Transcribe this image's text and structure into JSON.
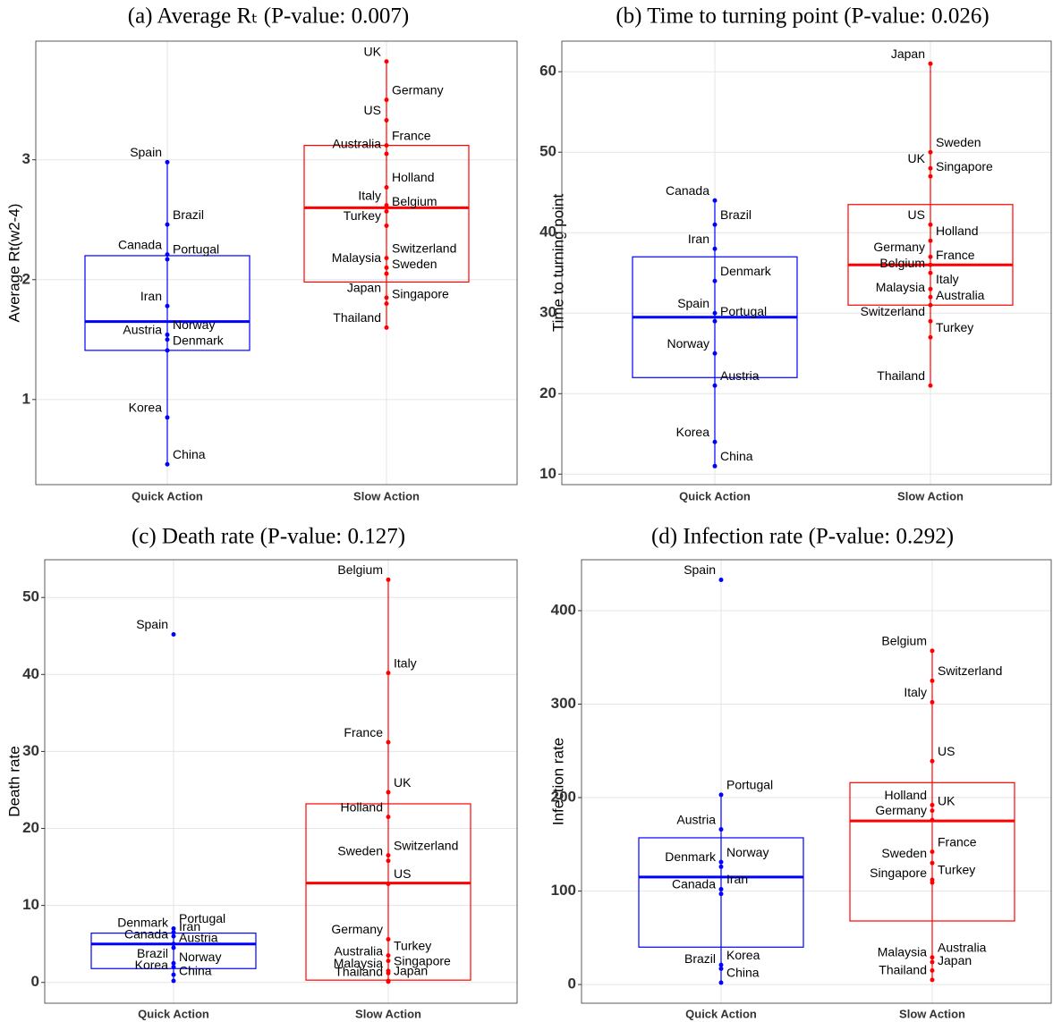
{
  "chart_data": [
    {
      "type": "box",
      "title": "(a) Average Rₜ (P-value: 0.007)",
      "ylabel": "Average Rt(w2-4)",
      "categories": [
        "Quick Action",
        "Slow Action"
      ],
      "ylim": [
        0.29,
        3.99
      ],
      "yticks": [
        1,
        2,
        3
      ],
      "grid": true,
      "groups": [
        {
          "color": "#0000ff",
          "q1": 1.41,
          "median": 1.65,
          "q3": 2.2,
          "whisker_low": 0.46,
          "whisker_high": 2.98,
          "points": [
            {
              "label": "Spain",
              "value": 2.98
            },
            {
              "label": "Brazil",
              "value": 2.46
            },
            {
              "label": "Canada",
              "value": 2.21
            },
            {
              "label": "Portugal",
              "value": 2.17
            },
            {
              "label": "Iran",
              "value": 1.78
            },
            {
              "label": "Norway",
              "value": 1.54
            },
            {
              "label": "Austria",
              "value": 1.5
            },
            {
              "label": "Denmark",
              "value": 1.41
            },
            {
              "label": "Korea",
              "value": 0.85
            },
            {
              "label": "China",
              "value": 0.46
            }
          ]
        },
        {
          "color": "#ff0000",
          "q1": 1.98,
          "median": 2.6,
          "q3": 3.12,
          "whisker_low": 1.6,
          "whisker_high": 3.82,
          "points": [
            {
              "label": "UK",
              "value": 3.82
            },
            {
              "label": "Germany",
              "value": 3.5
            },
            {
              "label": "US",
              "value": 3.33
            },
            {
              "label": "France",
              "value": 3.12
            },
            {
              "label": "Australia",
              "value": 3.05
            },
            {
              "label": "Holland",
              "value": 2.77
            },
            {
              "label": "Italy",
              "value": 2.62
            },
            {
              "label": "Belgium",
              "value": 2.57
            },
            {
              "label": "Turkey",
              "value": 2.45
            },
            {
              "label": "Switzerland",
              "value": 2.18
            },
            {
              "label": "Malaysia",
              "value": 2.1
            },
            {
              "label": "Sweden",
              "value": 2.05
            },
            {
              "label": "Japan",
              "value": 1.85
            },
            {
              "label": "Singapore",
              "value": 1.8
            },
            {
              "label": "Thailand",
              "value": 1.6
            }
          ]
        }
      ]
    },
    {
      "type": "box",
      "title": "(b) Time to turning point (P-value: 0.026)",
      "ylabel": "Time to turning point",
      "categories": [
        "Quick Action",
        "Slow Action"
      ],
      "ylim": [
        8.7,
        63.8
      ],
      "yticks": [
        10,
        20,
        30,
        40,
        50,
        60
      ],
      "grid": true,
      "groups": [
        {
          "color": "#0000ff",
          "q1": 22,
          "median": 29.5,
          "q3": 37,
          "whisker_low": 11,
          "whisker_high": 44,
          "points": [
            {
              "label": "Canada",
              "value": 44
            },
            {
              "label": "Brazil",
              "value": 41
            },
            {
              "label": "Iran",
              "value": 38
            },
            {
              "label": "Denmark",
              "value": 34
            },
            {
              "label": "Spain",
              "value": 30
            },
            {
              "label": "Portugal",
              "value": 29
            },
            {
              "label": "Norway",
              "value": 25
            },
            {
              "label": "Austria",
              "value": 21
            },
            {
              "label": "Korea",
              "value": 14
            },
            {
              "label": "China",
              "value": 11
            }
          ]
        },
        {
          "color": "#ff0000",
          "q1": 31,
          "median": 36,
          "q3": 43.5,
          "whisker_low": 21,
          "whisker_high": 61,
          "points": [
            {
              "label": "Japan",
              "value": 61
            },
            {
              "label": "Sweden",
              "value": 50
            },
            {
              "label": "UK",
              "value": 48
            },
            {
              "label": "Singapore",
              "value": 47
            },
            {
              "label": "US",
              "value": 41
            },
            {
              "label": "Holland",
              "value": 39
            },
            {
              "label": "Germany",
              "value": 37
            },
            {
              "label": "France",
              "value": 36
            },
            {
              "label": "Belgium",
              "value": 35
            },
            {
              "label": "Italy",
              "value": 33
            },
            {
              "label": "Malaysia",
              "value": 32
            },
            {
              "label": "Australia",
              "value": 31
            },
            {
              "label": "Switzerland",
              "value": 29
            },
            {
              "label": "Turkey",
              "value": 27
            },
            {
              "label": "Thailand",
              "value": 21
            }
          ]
        }
      ]
    },
    {
      "type": "box",
      "title": "(c) Death rate (P-value: 0.127)",
      "ylabel": "Death rate",
      "categories": [
        "Quick Action",
        "Slow Action"
      ],
      "ylim": [
        -2.7,
        54.9
      ],
      "yticks": [
        0,
        10,
        20,
        30,
        40,
        50
      ],
      "grid": true,
      "groups": [
        {
          "color": "#0000ff",
          "q1": 1.8,
          "median": 5,
          "q3": 6.4,
          "whisker_low": 0.2,
          "whisker_high": 7,
          "points": [
            {
              "label": "Spain",
              "value": 45.2
            },
            {
              "label": "Portugal",
              "value": 7
            },
            {
              "label": "Denmark",
              "value": 6.5
            },
            {
              "label": "Iran",
              "value": 6
            },
            {
              "label": "Canada",
              "value": 5
            },
            {
              "label": "Austria",
              "value": 4.5
            },
            {
              "label": "Brazil",
              "value": 2.5
            },
            {
              "label": "Norway",
              "value": 2
            },
            {
              "label": "Korea",
              "value": 1
            },
            {
              "label": "China",
              "value": 0.2
            }
          ]
        },
        {
          "color": "#ff0000",
          "q1": 0.3,
          "median": 12.9,
          "q3": 23.2,
          "whisker_low": 0.1,
          "whisker_high": 52.3,
          "points": [
            {
              "label": "Belgium",
              "value": 52.3
            },
            {
              "label": "Italy",
              "value": 40.2
            },
            {
              "label": "France",
              "value": 31.2
            },
            {
              "label": "UK",
              "value": 24.7
            },
            {
              "label": "Holland",
              "value": 21.5
            },
            {
              "label": "Switzerland",
              "value": 16.5
            },
            {
              "label": "Sweden",
              "value": 15.8
            },
            {
              "label": "US",
              "value": 12.8
            },
            {
              "label": "Germany",
              "value": 5.6
            },
            {
              "label": "Turkey",
              "value": 3.5
            },
            {
              "label": "Australia",
              "value": 2.8
            },
            {
              "label": "Singapore",
              "value": 1.5
            },
            {
              "label": "Malaysia",
              "value": 1.2
            },
            {
              "label": "Japan",
              "value": 0.2
            },
            {
              "label": "Thailand",
              "value": 0.1
            }
          ]
        }
      ]
    },
    {
      "type": "box",
      "title": "(d) Infection rate (P-value: 0.292)",
      "ylabel": "Infection rate",
      "categories": [
        "Quick Action",
        "Slow Action"
      ],
      "ylim": [
        -20,
        454.5
      ],
      "yticks": [
        0,
        100,
        200,
        300,
        400
      ],
      "grid": true,
      "groups": [
        {
          "color": "#0000ff",
          "q1": 40,
          "median": 115,
          "q3": 157,
          "whisker_low": 2,
          "whisker_high": 203,
          "points": [
            {
              "label": "Spain",
              "value": 433
            },
            {
              "label": "Portugal",
              "value": 203
            },
            {
              "label": "Austria",
              "value": 166
            },
            {
              "label": "Norway",
              "value": 131
            },
            {
              "label": "Denmark",
              "value": 126
            },
            {
              "label": "Iran",
              "value": 102
            },
            {
              "label": "Canada",
              "value": 97
            },
            {
              "label": "Korea",
              "value": 21
            },
            {
              "label": "Brazil",
              "value": 17
            },
            {
              "label": "China",
              "value": 2
            }
          ]
        },
        {
          "color": "#ff0000",
          "q1": 68,
          "median": 175,
          "q3": 216,
          "whisker_low": 5,
          "whisker_high": 357,
          "points": [
            {
              "label": "Belgium",
              "value": 357
            },
            {
              "label": "Switzerland",
              "value": 325
            },
            {
              "label": "Italy",
              "value": 302
            },
            {
              "label": "US",
              "value": 239
            },
            {
              "label": "Holland",
              "value": 192
            },
            {
              "label": "UK",
              "value": 186
            },
            {
              "label": "Germany",
              "value": 176
            },
            {
              "label": "France",
              "value": 142
            },
            {
              "label": "Sweden",
              "value": 130
            },
            {
              "label": "Turkey",
              "value": 112
            },
            {
              "label": "Singapore",
              "value": 109
            },
            {
              "label": "Australia",
              "value": 29
            },
            {
              "label": "Malaysia",
              "value": 24
            },
            {
              "label": "Japan",
              "value": 15
            },
            {
              "label": "Thailand",
              "value": 5
            }
          ]
        }
      ]
    }
  ]
}
